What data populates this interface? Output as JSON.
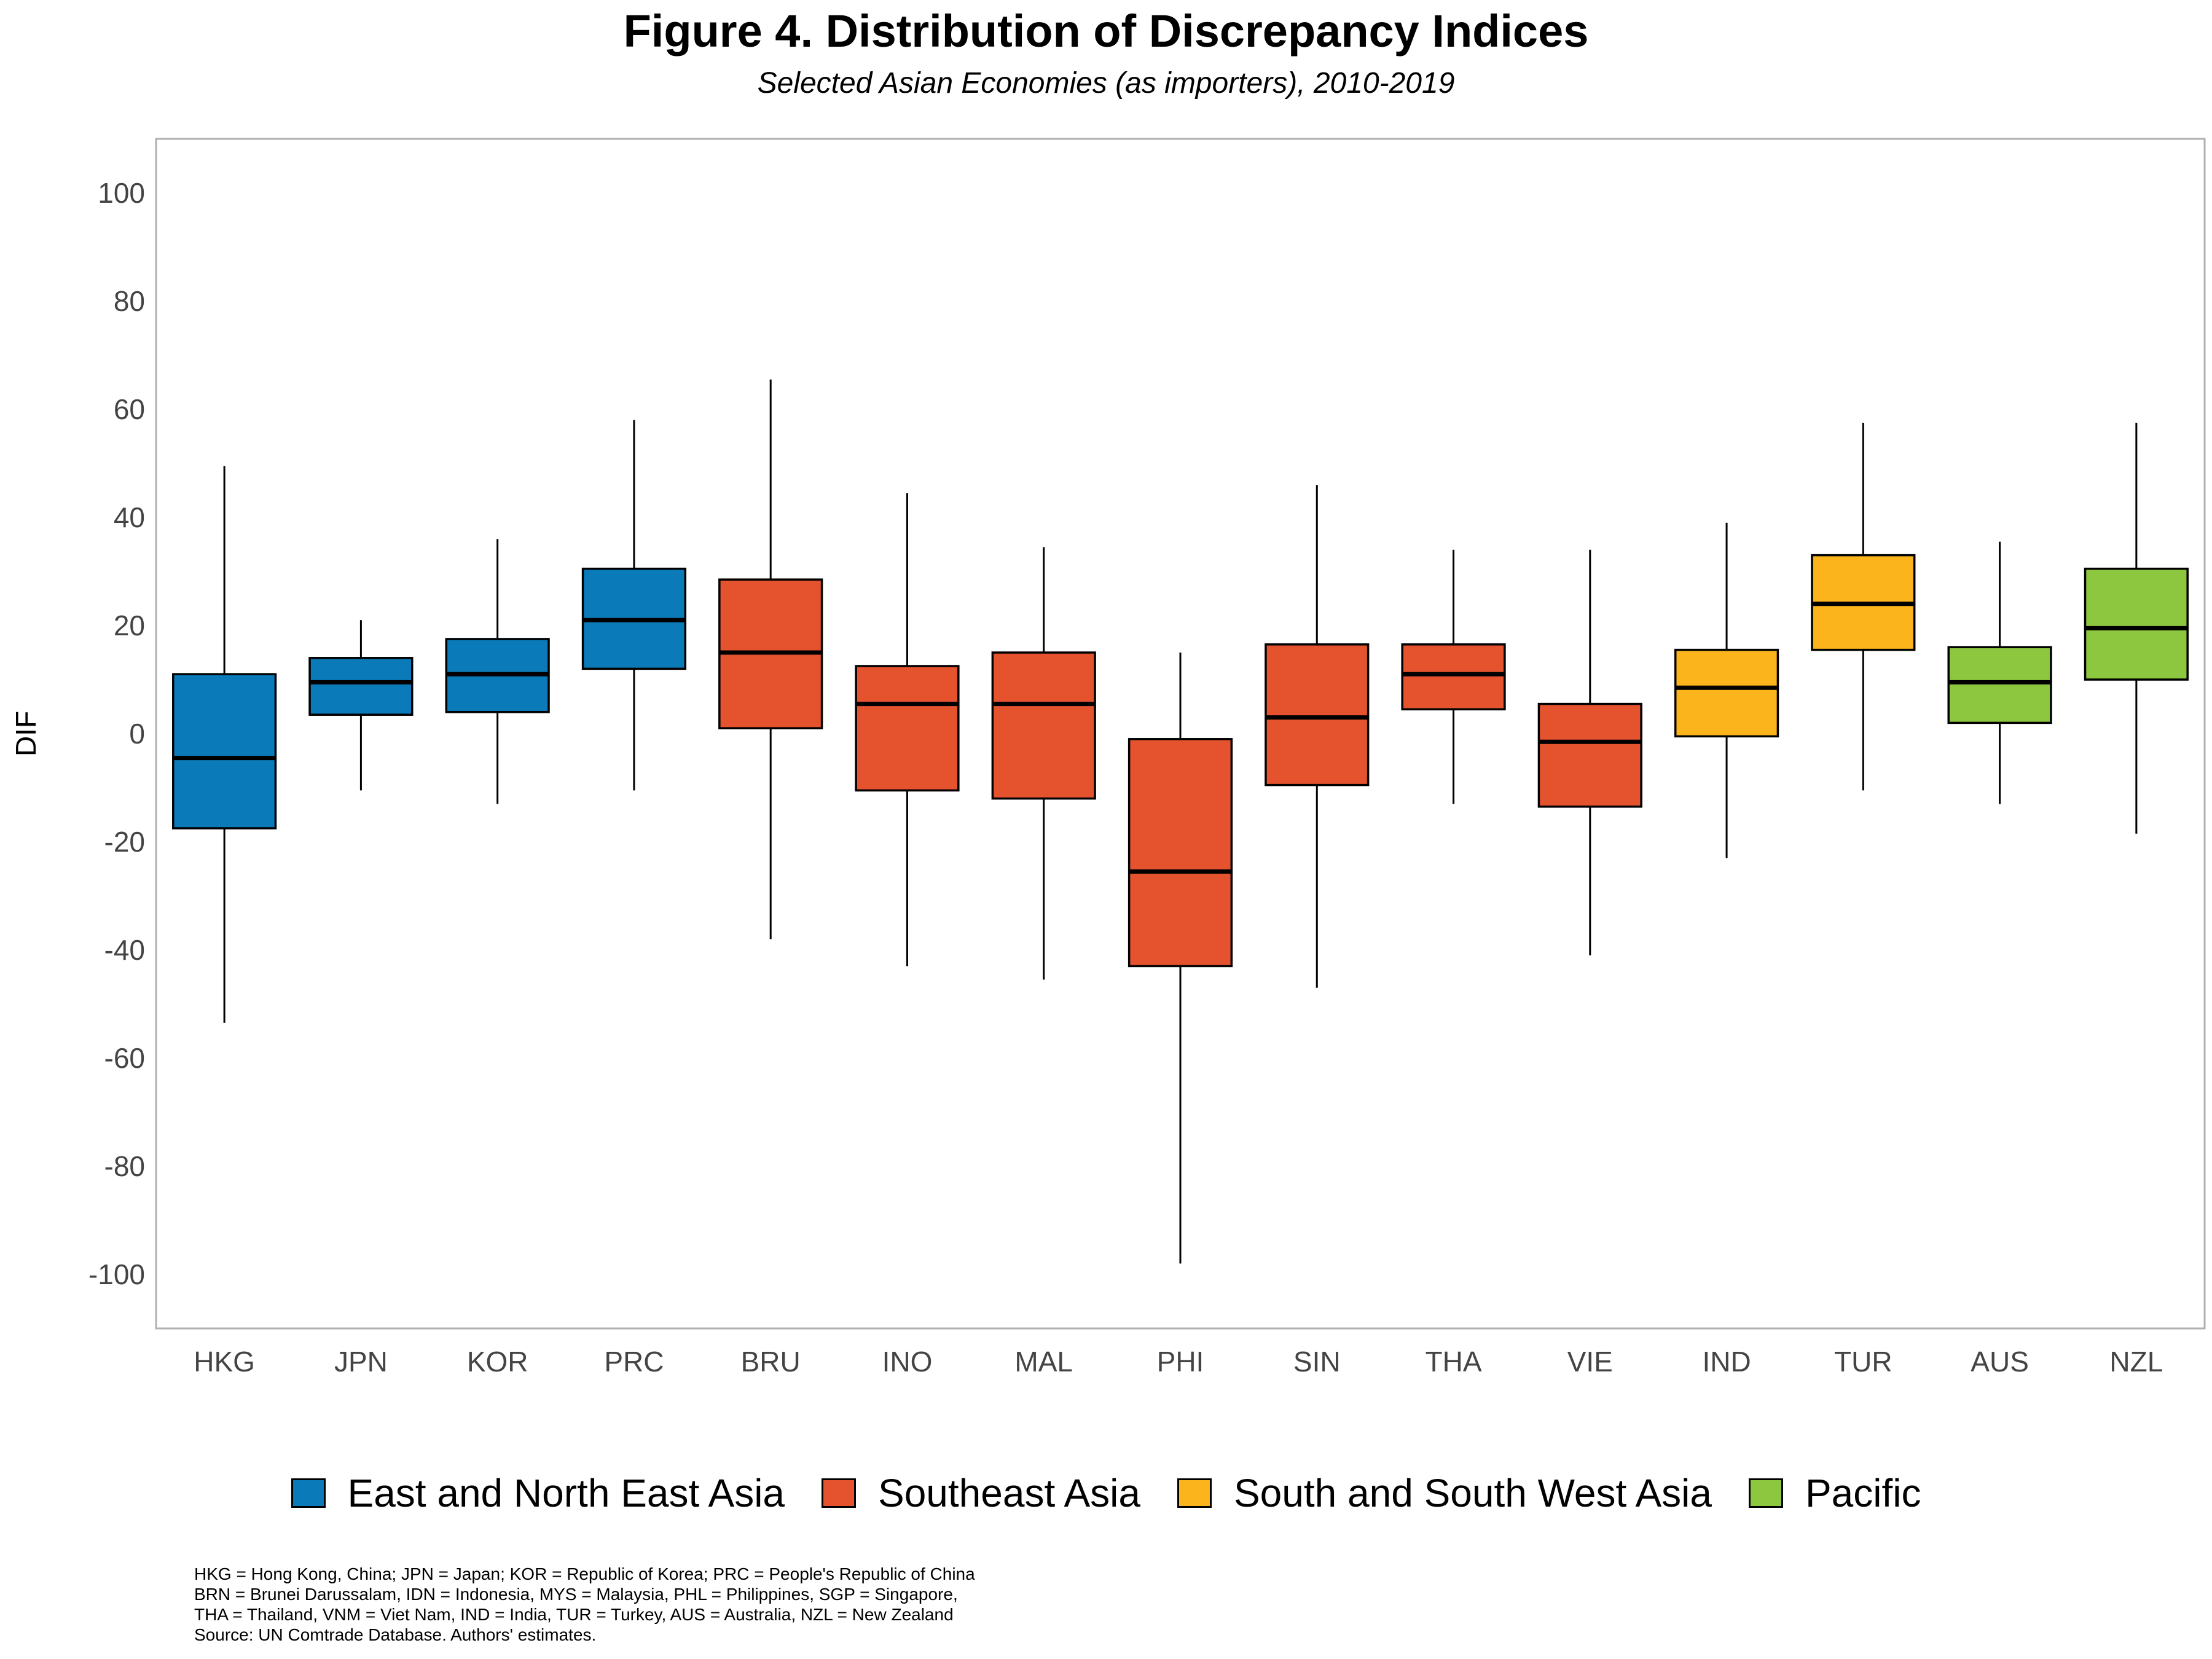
{
  "chart_data": {
    "type": "box",
    "title": "Figure 4. Distribution of Discrepancy Indices",
    "subtitle": "Selected Asian Economies (as importers), 2010-2019",
    "xlabel": "",
    "ylabel": "DIF",
    "ylim": [
      -110,
      110
    ],
    "yticks": [
      100,
      80,
      60,
      40,
      20,
      0,
      -20,
      -40,
      -60,
      -80,
      -100
    ],
    "grid": false,
    "legend_position": "bottom",
    "categories": [
      "HKG",
      "JPN",
      "KOR",
      "PRC",
      "BRU",
      "INO",
      "MAL",
      "PHI",
      "SIN",
      "THA",
      "VIE",
      "IND",
      "TUR",
      "AUS",
      "NZL"
    ],
    "boxes": [
      {
        "category": "HKG",
        "group": "East and North East Asia",
        "min": -53.5,
        "q1": -17.5,
        "median": -4.5,
        "q3": 11.0,
        "max": 49.5
      },
      {
        "category": "JPN",
        "group": "East and North East Asia",
        "min": -10.5,
        "q1": 3.5,
        "median": 9.5,
        "q3": 14.0,
        "max": 21.0
      },
      {
        "category": "KOR",
        "group": "East and North East Asia",
        "min": -13.0,
        "q1": 4.0,
        "median": 11.0,
        "q3": 17.5,
        "max": 36.0
      },
      {
        "category": "PRC",
        "group": "East and North East Asia",
        "min": -10.5,
        "q1": 12.0,
        "median": 21.0,
        "q3": 30.5,
        "max": 58.0
      },
      {
        "category": "BRU",
        "group": "Southeast Asia",
        "min": -38.0,
        "q1": 1.0,
        "median": 15.0,
        "q3": 28.5,
        "max": 65.5
      },
      {
        "category": "INO",
        "group": "Southeast Asia",
        "min": -43.0,
        "q1": -10.5,
        "median": 5.5,
        "q3": 12.5,
        "max": 44.5
      },
      {
        "category": "MAL",
        "group": "Southeast Asia",
        "min": -45.5,
        "q1": -12.0,
        "median": 5.5,
        "q3": 15.0,
        "max": 34.5
      },
      {
        "category": "PHI",
        "group": "Southeast Asia",
        "min": -98.0,
        "q1": -43.0,
        "median": -25.5,
        "q3": -1.0,
        "max": 15.0
      },
      {
        "category": "SIN",
        "group": "Southeast Asia",
        "min": -47.0,
        "q1": -9.5,
        "median": 3.0,
        "q3": 16.5,
        "max": 46.0
      },
      {
        "category": "THA",
        "group": "Southeast Asia",
        "min": -13.0,
        "q1": 4.5,
        "median": 11.0,
        "q3": 16.5,
        "max": 34.0
      },
      {
        "category": "VIE",
        "group": "Southeast Asia",
        "min": -41.0,
        "q1": -13.5,
        "median": -1.5,
        "q3": 5.5,
        "max": 34.0
      },
      {
        "category": "IND",
        "group": "South and South West Asia",
        "min": -23.0,
        "q1": -0.5,
        "median": 8.5,
        "q3": 15.5,
        "max": 39.0
      },
      {
        "category": "TUR",
        "group": "South and South West Asia",
        "min": -10.5,
        "q1": 15.5,
        "median": 24.0,
        "q3": 33.0,
        "max": 57.5
      },
      {
        "category": "AUS",
        "group": "Pacific",
        "min": -13.0,
        "q1": 2.0,
        "median": 9.5,
        "q3": 16.0,
        "max": 35.5
      },
      {
        "category": "NZL",
        "group": "Pacific",
        "min": -18.5,
        "q1": 10.0,
        "median": 19.5,
        "q3": 30.5,
        "max": 57.5
      }
    ],
    "legend": [
      {
        "label": "East and North East Asia",
        "color": "#0A7BB8"
      },
      {
        "label": "Southeast Asia",
        "color": "#E5532E"
      },
      {
        "label": "South and South West Asia",
        "color": "#FBB41C"
      },
      {
        "label": "Pacific",
        "color": "#8DC63F"
      }
    ]
  },
  "notes": [
    "HKG = Hong Kong, China; JPN = Japan; KOR = Republic of Korea; PRC = People's Republic of China",
    "BRN = Brunei Darussalam, IDN = Indonesia, MYS = Malaysia, PHL = Philippines, SGP = Singapore,",
    "THA = Thailand, VNM = Viet Nam, IND = India, TUR = Turkey, AUS = Australia, NZL = New Zealand",
    "Source: UN Comtrade Database. Authors' estimates."
  ]
}
